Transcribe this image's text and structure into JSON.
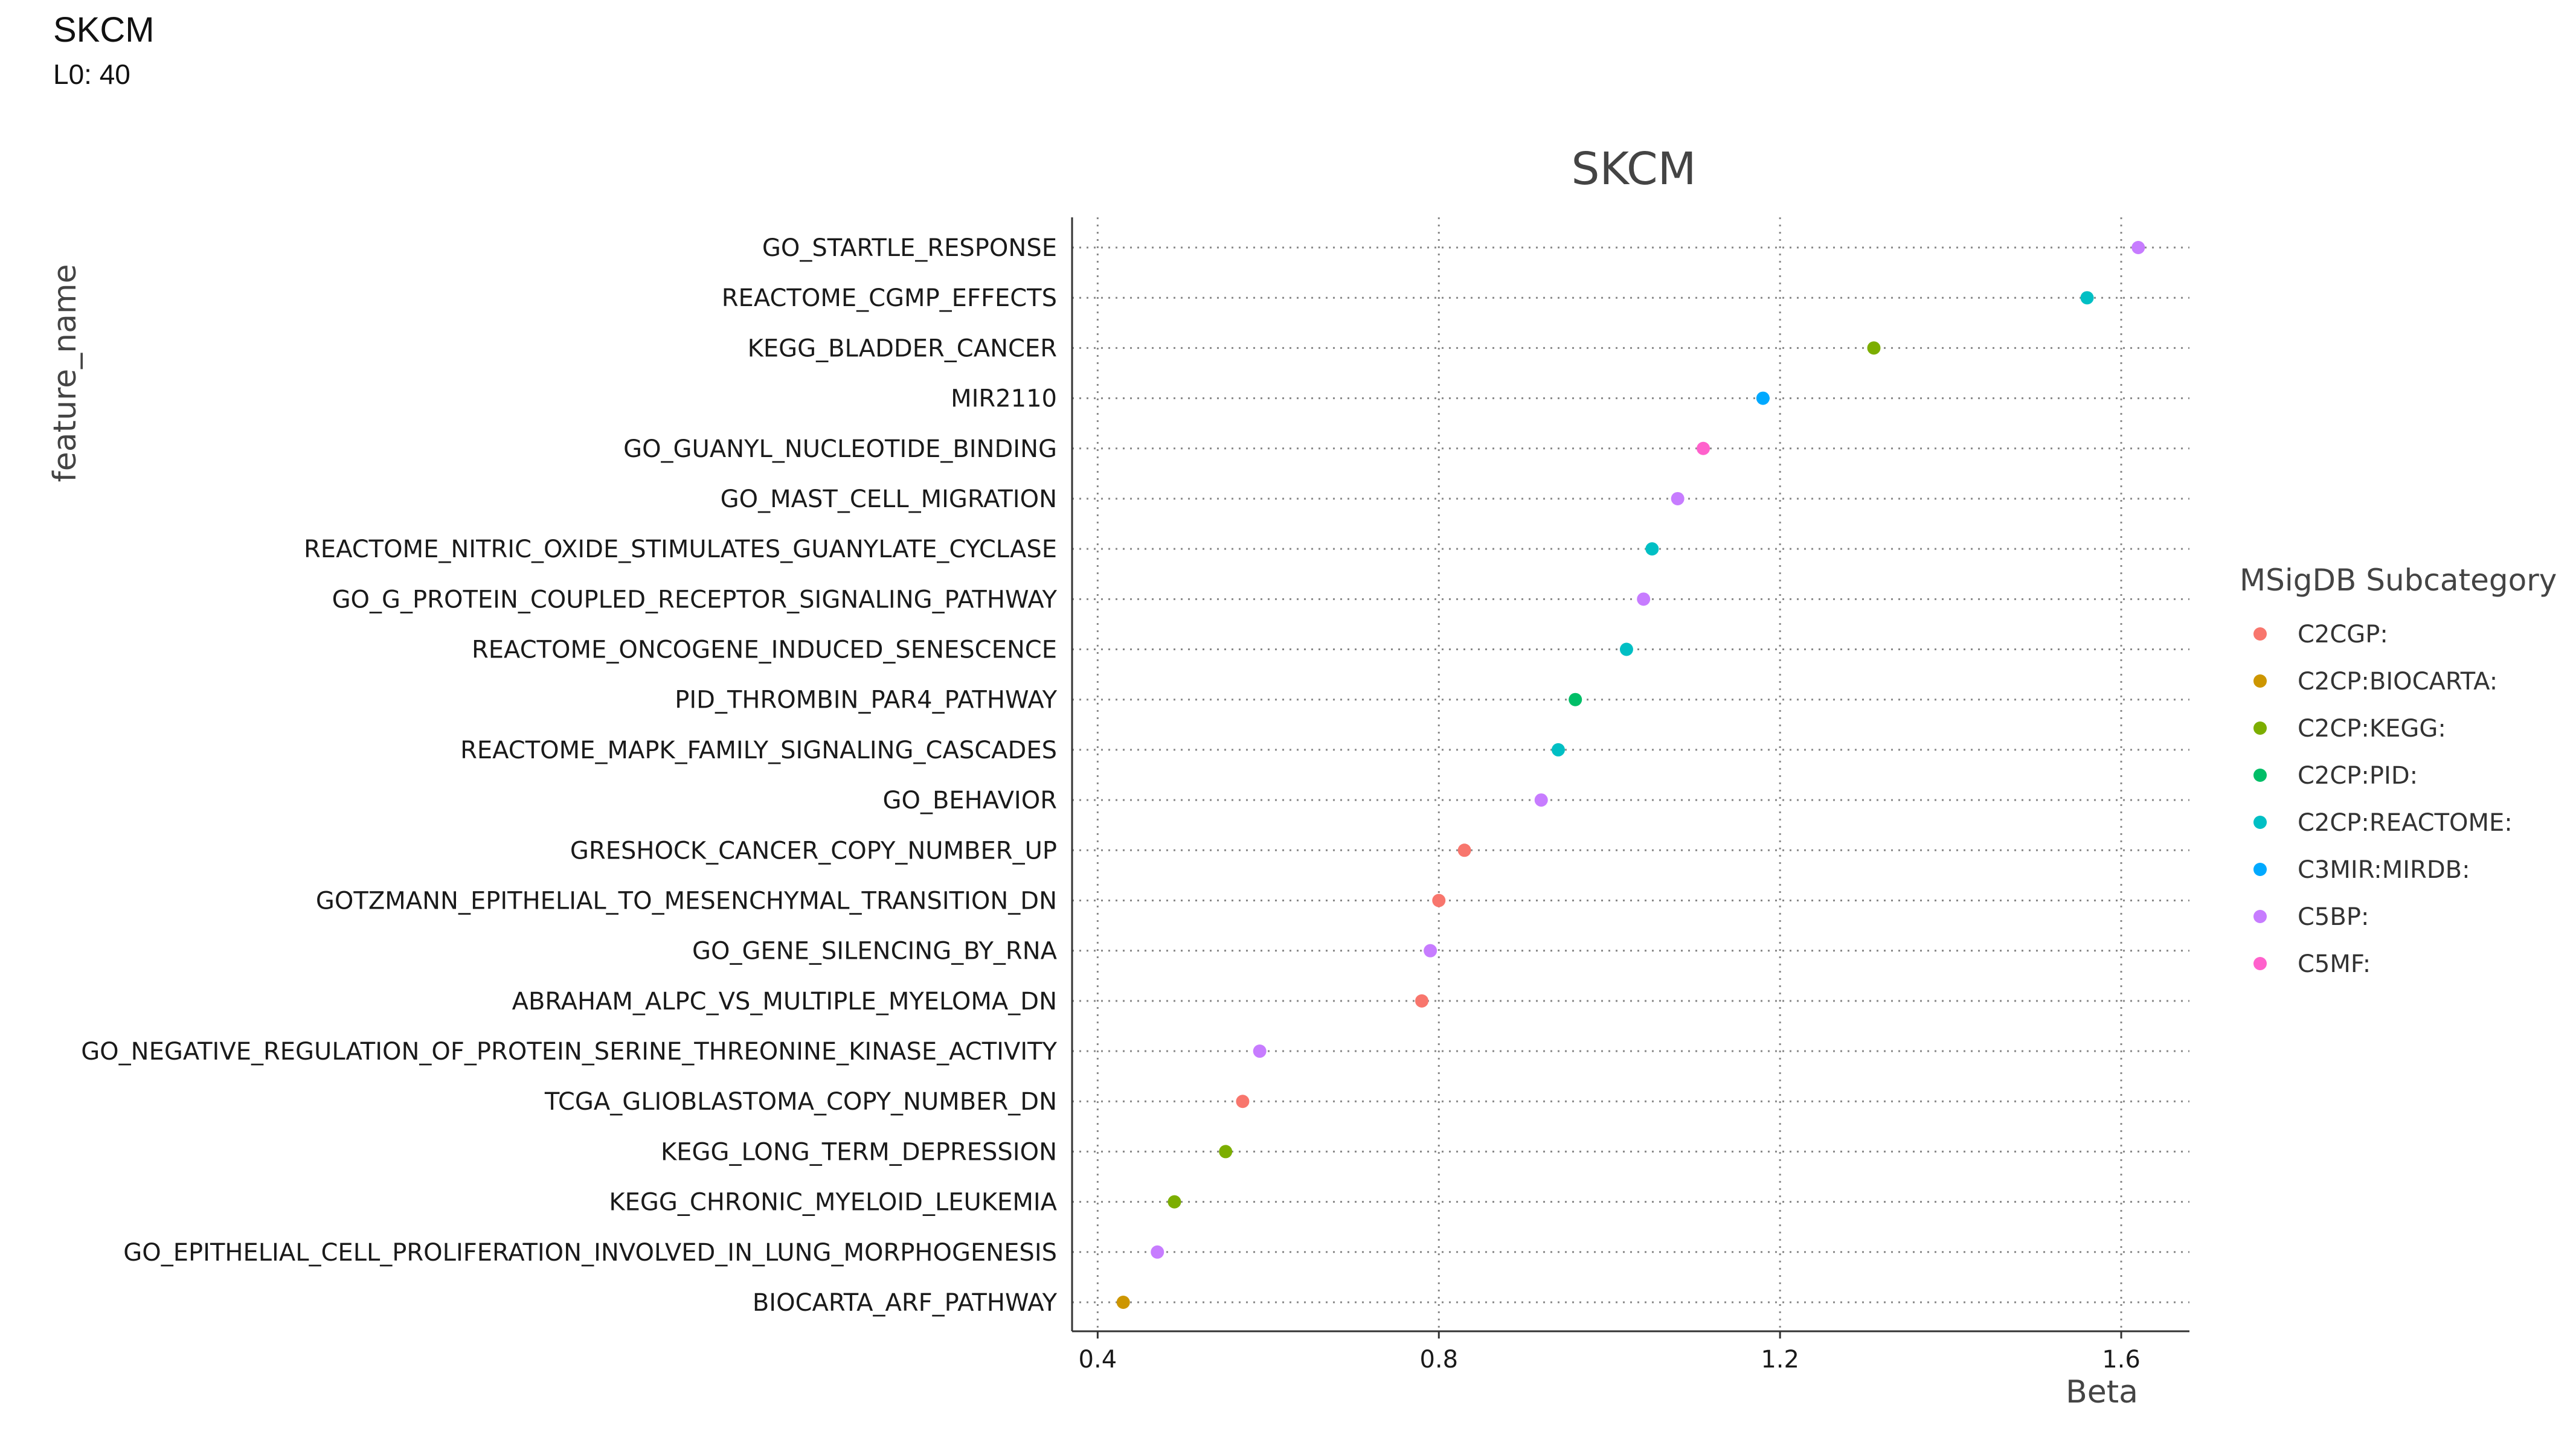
{
  "header": {
    "title": "SKCM",
    "subtitle": "L0: 40"
  },
  "chart_data": {
    "type": "scatter",
    "title": "SKCM",
    "xlabel": "Beta",
    "ylabel": "feature_name",
    "xlim": [
      0.37,
      1.68
    ],
    "xticks": [
      0.4,
      0.8,
      1.2,
      1.6
    ],
    "xtick_labels": [
      "0.4",
      "0.8",
      "1.2",
      "1.6"
    ],
    "grid": true,
    "legend_title": "MSigDB Subcategory",
    "legend_position": "right",
    "legend": [
      {
        "name": "C2CGP:",
        "color": "#F8766D"
      },
      {
        "name": "C2CP:BIOCARTA:",
        "color": "#CD9600"
      },
      {
        "name": "C2CP:KEGG:",
        "color": "#7CAE00"
      },
      {
        "name": "C2CP:PID:",
        "color": "#00BE67"
      },
      {
        "name": "C2CP:REACTOME:",
        "color": "#00BFC4"
      },
      {
        "name": "C3MIR:MIRDB:",
        "color": "#00A9FF"
      },
      {
        "name": "C5BP:",
        "color": "#C77CFF"
      },
      {
        "name": "C5MF:",
        "color": "#FF61CC"
      }
    ],
    "points": [
      {
        "feature": "GO_STARTLE_RESPONSE",
        "beta": 1.62,
        "category": "C5BP:"
      },
      {
        "feature": "REACTOME_CGMP_EFFECTS",
        "beta": 1.56,
        "category": "C2CP:REACTOME:"
      },
      {
        "feature": "KEGG_BLADDER_CANCER",
        "beta": 1.31,
        "category": "C2CP:KEGG:"
      },
      {
        "feature": "MIR2110",
        "beta": 1.18,
        "category": "C3MIR:MIRDB:"
      },
      {
        "feature": "GO_GUANYL_NUCLEOTIDE_BINDING",
        "beta": 1.11,
        "category": "C5MF:"
      },
      {
        "feature": "GO_MAST_CELL_MIGRATION",
        "beta": 1.08,
        "category": "C5BP:"
      },
      {
        "feature": "REACTOME_NITRIC_OXIDE_STIMULATES_GUANYLATE_CYCLASE",
        "beta": 1.05,
        "category": "C2CP:REACTOME:"
      },
      {
        "feature": "GO_G_PROTEIN_COUPLED_RECEPTOR_SIGNALING_PATHWAY",
        "beta": 1.04,
        "category": "C5BP:"
      },
      {
        "feature": "REACTOME_ONCOGENE_INDUCED_SENESCENCE",
        "beta": 1.02,
        "category": "C2CP:REACTOME:"
      },
      {
        "feature": "PID_THROMBIN_PAR4_PATHWAY",
        "beta": 0.96,
        "category": "C2CP:PID:"
      },
      {
        "feature": "REACTOME_MAPK_FAMILY_SIGNALING_CASCADES",
        "beta": 0.94,
        "category": "C2CP:REACTOME:"
      },
      {
        "feature": "GO_BEHAVIOR",
        "beta": 0.92,
        "category": "C5BP:"
      },
      {
        "feature": "GRESHOCK_CANCER_COPY_NUMBER_UP",
        "beta": 0.83,
        "category": "C2CGP:"
      },
      {
        "feature": "GOTZMANN_EPITHELIAL_TO_MESENCHYMAL_TRANSITION_DN",
        "beta": 0.8,
        "category": "C2CGP:"
      },
      {
        "feature": "GO_GENE_SILENCING_BY_RNA",
        "beta": 0.79,
        "category": "C5BP:"
      },
      {
        "feature": "ABRAHAM_ALPC_VS_MULTIPLE_MYELOMA_DN",
        "beta": 0.78,
        "category": "C2CGP:"
      },
      {
        "feature": "GO_NEGATIVE_REGULATION_OF_PROTEIN_SERINE_THREONINE_KINASE_ACTIVITY",
        "beta": 0.59,
        "category": "C5BP:"
      },
      {
        "feature": "TCGA_GLIOBLASTOMA_COPY_NUMBER_DN",
        "beta": 0.57,
        "category": "C2CGP:"
      },
      {
        "feature": "KEGG_LONG_TERM_DEPRESSION",
        "beta": 0.55,
        "category": "C2CP:KEGG:"
      },
      {
        "feature": "KEGG_CHRONIC_MYELOID_LEUKEMIA",
        "beta": 0.49,
        "category": "C2CP:KEGG:"
      },
      {
        "feature": "GO_EPITHELIAL_CELL_PROLIFERATION_INVOLVED_IN_LUNG_MORPHOGENESIS",
        "beta": 0.47,
        "category": "C5BP:"
      },
      {
        "feature": "BIOCARTA_ARF_PATHWAY",
        "beta": 0.43,
        "category": "C2CP:BIOCARTA:"
      }
    ]
  }
}
